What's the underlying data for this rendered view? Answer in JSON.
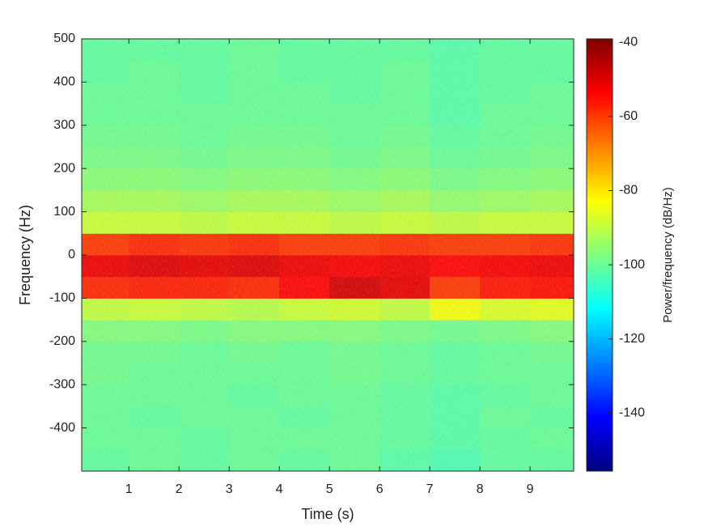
{
  "chart_data": {
    "type": "heatmap",
    "xlabel": "Time (s)",
    "ylabel": "Frequency (Hz)",
    "colorbar_label": "Power/frequency (dB/Hz)",
    "colormap": "jet",
    "x_edges": [
      0.06,
      1,
      2,
      3,
      4,
      5,
      6,
      7,
      8,
      9,
      9.87
    ],
    "y_edges": [
      -500,
      -450,
      -400,
      -350,
      -300,
      -250,
      -200,
      -150,
      -100,
      -50,
      0,
      50,
      100,
      150,
      200,
      250,
      300,
      350,
      400,
      450,
      500
    ],
    "z": [
      [
        -101,
        -100,
        -101,
        -100,
        -101,
        -100,
        -102,
        -103,
        -101,
        -101
      ],
      [
        -100,
        -100,
        -101,
        -100,
        -100,
        -100,
        -101,
        -102,
        -101,
        -100
      ],
      [
        -100,
        -101,
        -100,
        -100,
        -101,
        -100,
        -101,
        -102,
        -100,
        -101
      ],
      [
        -100,
        -100,
        -100,
        -101,
        -100,
        -100,
        -101,
        -102,
        -101,
        -100
      ],
      [
        -99,
        -100,
        -100,
        -100,
        -100,
        -99,
        -100,
        -101,
        -100,
        -100
      ],
      [
        -99,
        -99,
        -100,
        -99,
        -100,
        -99,
        -100,
        -101,
        -100,
        -99
      ],
      [
        -97,
        -97,
        -98,
        -97,
        -97,
        -97,
        -98,
        -99,
        -98,
        -97
      ],
      [
        -90,
        -89,
        -90,
        -91,
        -89,
        -88,
        -90,
        -84,
        -87,
        -86
      ],
      [
        -58,
        -57,
        -57,
        -58,
        -54,
        -49,
        -51,
        -60,
        -56,
        -55
      ],
      [
        -52,
        -50,
        -51,
        -50,
        -52,
        -53,
        -52,
        -54,
        -53,
        -52
      ],
      [
        -60,
        -58,
        -59,
        -58,
        -60,
        -60,
        -59,
        -60,
        -60,
        -59
      ],
      [
        -89,
        -89,
        -90,
        -89,
        -89,
        -90,
        -89,
        -90,
        -89,
        -89
      ],
      [
        -93,
        -93,
        -94,
        -93,
        -93,
        -94,
        -93,
        -95,
        -94,
        -93
      ],
      [
        -96,
        -96,
        -97,
        -96,
        -96,
        -97,
        -96,
        -98,
        -97,
        -96
      ],
      [
        -98,
        -98,
        -99,
        -98,
        -98,
        -99,
        -98,
        -100,
        -99,
        -98
      ],
      [
        -99,
        -99,
        -100,
        -99,
        -99,
        -100,
        -99,
        -101,
        -100,
        -99
      ],
      [
        -100,
        -100,
        -100,
        -100,
        -100,
        -100,
        -100,
        -102,
        -100,
        -100
      ],
      [
        -100,
        -100,
        -101,
        -100,
        -100,
        -101,
        -100,
        -102,
        -101,
        -100
      ],
      [
        -101,
        -100,
        -101,
        -100,
        -101,
        -101,
        -100,
        -102,
        -101,
        -101
      ],
      [
        -101,
        -101,
        -101,
        -100,
        -101,
        -101,
        -101,
        -102,
        -101,
        -101
      ]
    ],
    "xlim": [
      0.06,
      9.87
    ],
    "ylim": [
      -500,
      500
    ],
    "xticks": [
      1,
      2,
      3,
      4,
      5,
      6,
      7,
      8,
      9
    ],
    "yticks": [
      -400,
      -300,
      -200,
      -100,
      0,
      100,
      200,
      300,
      400,
      500
    ],
    "clim": [
      -155.6,
      -39.1
    ],
    "cticks": [
      -140,
      -120,
      -100,
      -80,
      -60,
      -40
    ]
  }
}
